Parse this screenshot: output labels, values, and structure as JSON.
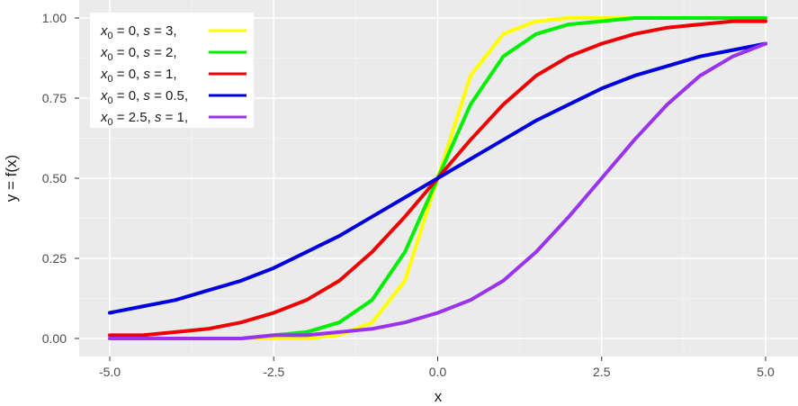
{
  "chart_data": {
    "type": "line",
    "xlabel": "x",
    "ylabel": "y = f(x)",
    "xlim": [
      -5,
      5
    ],
    "ylim": [
      0,
      1
    ],
    "x_ticks": [
      -5,
      -2.5,
      0,
      2.5,
      5
    ],
    "x_tick_labels": [
      "-5.0",
      "-2.5",
      "0.0",
      "2.5",
      "5.0"
    ],
    "y_ticks": [
      0,
      0.25,
      0.5,
      0.75,
      1
    ],
    "y_tick_labels": [
      "0.00",
      "0.25",
      "0.50",
      "0.75",
      "1.00"
    ],
    "grid": true,
    "legend_position": "top-left",
    "x": [
      -5,
      -4.5,
      -4,
      -3.5,
      -3,
      -2.5,
      -2,
      -1.5,
      -1,
      -0.5,
      0,
      0.5,
      1,
      1.5,
      2,
      2.5,
      3,
      3.5,
      4,
      4.5,
      5
    ],
    "series": [
      {
        "legend": {
          "x0": "0",
          "s": "3"
        },
        "color": "#ffff00",
        "values": [
          0.0,
          0.0,
          0.0,
          0.0,
          0.0,
          0.0,
          0.0,
          0.01,
          0.05,
          0.18,
          0.5,
          0.82,
          0.95,
          0.99,
          1.0,
          1.0,
          1.0,
          1.0,
          1.0,
          1.0,
          1.0
        ]
      },
      {
        "legend": {
          "x0": "0",
          "s": "2"
        },
        "color": "#00ee00",
        "values": [
          0.0,
          0.0,
          0.0,
          0.0,
          0.0,
          0.01,
          0.02,
          0.05,
          0.12,
          0.27,
          0.5,
          0.73,
          0.88,
          0.95,
          0.98,
          0.99,
          1.0,
          1.0,
          1.0,
          1.0,
          1.0
        ]
      },
      {
        "legend": {
          "x0": "0",
          "s": "1"
        },
        "color": "#ee0000",
        "values": [
          0.01,
          0.01,
          0.02,
          0.03,
          0.05,
          0.08,
          0.12,
          0.18,
          0.27,
          0.38,
          0.5,
          0.62,
          0.73,
          0.82,
          0.88,
          0.92,
          0.95,
          0.97,
          0.98,
          0.99,
          0.99
        ]
      },
      {
        "legend": {
          "x0": "0",
          "s": "0.5"
        },
        "color": "#0000dd",
        "values": [
          0.08,
          0.1,
          0.12,
          0.15,
          0.18,
          0.22,
          0.27,
          0.32,
          0.38,
          0.44,
          0.5,
          0.56,
          0.62,
          0.68,
          0.73,
          0.78,
          0.82,
          0.85,
          0.88,
          0.9,
          0.92
        ]
      },
      {
        "legend": {
          "x0": "2.5",
          "s": "1"
        },
        "color": "#9933ee",
        "values": [
          0.0,
          0.0,
          0.0,
          0.0,
          0.0,
          0.01,
          0.01,
          0.02,
          0.03,
          0.05,
          0.08,
          0.12,
          0.18,
          0.27,
          0.38,
          0.5,
          0.62,
          0.73,
          0.82,
          0.88,
          0.92
        ]
      }
    ]
  }
}
